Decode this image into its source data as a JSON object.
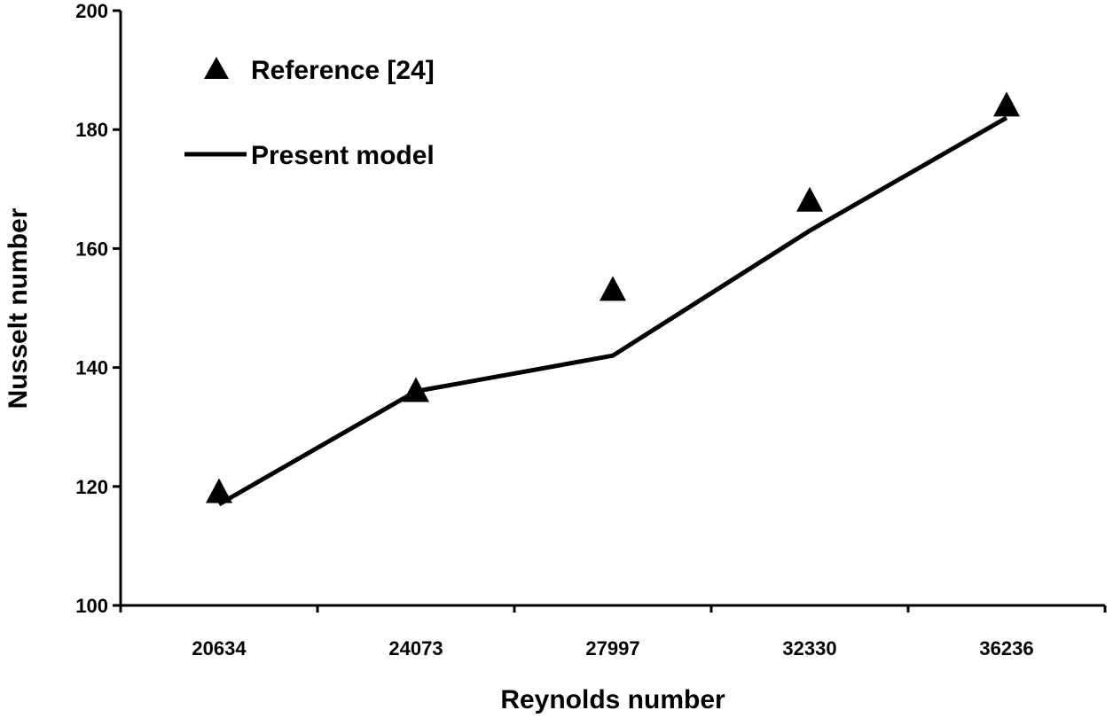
{
  "chart_data": {
    "type": "line",
    "x_type": "categorical",
    "categories": [
      "20634",
      "24073",
      "27997",
      "32330",
      "36236"
    ],
    "xlabel": "Reynolds number",
    "ylabel": "Nusselt number",
    "ylim": [
      100,
      200
    ],
    "yticks": [
      "100",
      "120",
      "140",
      "160",
      "180",
      "200"
    ],
    "grid": false,
    "legend_position": "top-left",
    "series": [
      {
        "name": "Reference [24]",
        "style": "markers",
        "marker": "triangle",
        "color": "#000000",
        "values": [
          119,
          136,
          153,
          168,
          184
        ]
      },
      {
        "name": "Present model",
        "style": "line",
        "color": "#000000",
        "values": [
          117,
          136,
          142,
          163,
          182
        ]
      }
    ]
  }
}
